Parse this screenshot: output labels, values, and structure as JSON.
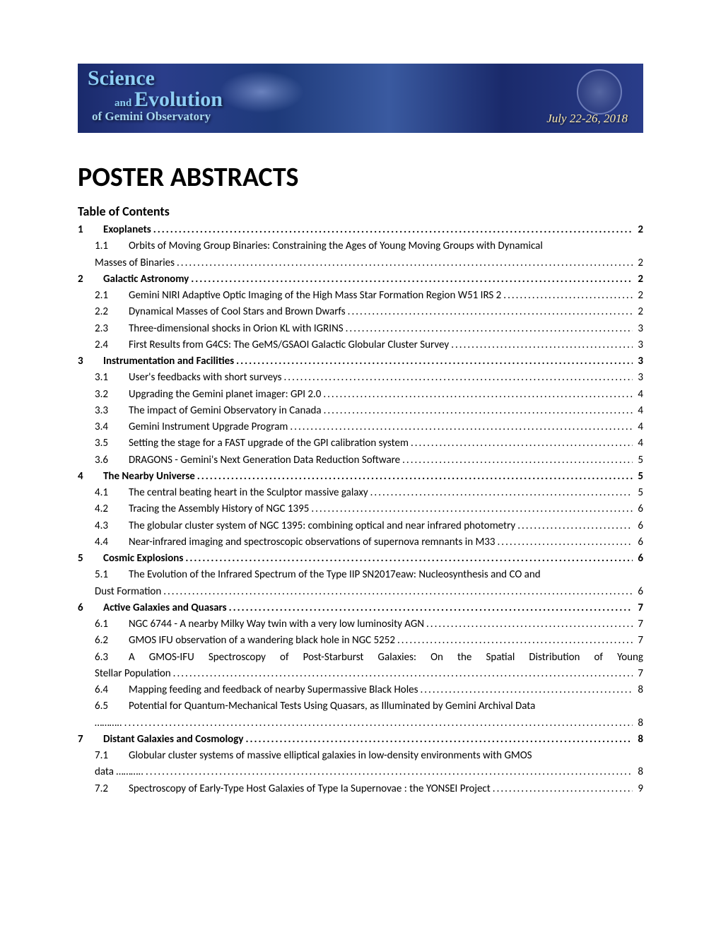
{
  "banner": {
    "line1": "Science",
    "line2a": "and ",
    "line2b": "Evolution",
    "line3": "of Gemini Observatory",
    "date": "July 22-26, 2018",
    "bg_gradient": "#1a2a6b,#2a3d8a,#1e3a7a,#3a5aa0",
    "title_color": "#8ecff5",
    "date_color": "#f8e8b0"
  },
  "title": "POSTER ABSTRACTS",
  "toc_heading": "Table of Contents",
  "font": {
    "body_family": "Calibri",
    "title_size_pt": 28,
    "toc_head_size_pt": 13,
    "toc_body_size_pt": 11
  },
  "colors": {
    "text": "#000000",
    "background": "#ffffff"
  },
  "toc": [
    {
      "type": "section",
      "num": "1",
      "title": "Exoplanets",
      "page": "2"
    },
    {
      "type": "sub",
      "num": "1.1",
      "title": "Orbits of Moving Group Binaries: Constraining the Ages of Young Moving Groups with Dynamical",
      "cont": "Masses of Binaries",
      "page": "2"
    },
    {
      "type": "section",
      "num": "2",
      "title": "Galactic Astronomy",
      "page": "2"
    },
    {
      "type": "sub",
      "num": "2.1",
      "title": "Gemini NIRI Adaptive Optic Imaging of the High Mass Star Formation Region W51 IRS 2",
      "page": "2"
    },
    {
      "type": "sub",
      "num": "2.2",
      "title": "Dynamical Masses of Cool Stars and Brown Dwarfs",
      "page": "2"
    },
    {
      "type": "sub",
      "num": "2.3",
      "title": "Three-dimensional shocks in Orion KL with IGRINS",
      "page": "3"
    },
    {
      "type": "sub",
      "num": "2.4",
      "title": "First Results from G4CS: The GeMS/GSAOI Galactic Globular Cluster Survey",
      "page": "3"
    },
    {
      "type": "section",
      "num": "3",
      "title": "Instrumentation and Facilities",
      "page": "3"
    },
    {
      "type": "sub",
      "num": "3.1",
      "title": "User's feedbacks with short surveys",
      "page": "3"
    },
    {
      "type": "sub",
      "num": "3.2",
      "title": "Upgrading the Gemini planet imager: GPI 2.0",
      "page": "4"
    },
    {
      "type": "sub",
      "num": "3.3",
      "title": "The impact of Gemini Observatory in Canada",
      "page": "4"
    },
    {
      "type": "sub",
      "num": "3.4",
      "title": "Gemini Instrument Upgrade Program",
      "page": "4"
    },
    {
      "type": "sub",
      "num": "3.5",
      "title": "Setting the stage for a FAST upgrade of the GPI calibration system",
      "page": "4"
    },
    {
      "type": "sub",
      "num": "3.6",
      "title": "DRAGONS - Gemini's Next Generation Data Reduction Software",
      "page": "5"
    },
    {
      "type": "section",
      "num": "4",
      "title": "The Nearby Universe",
      "page": "5"
    },
    {
      "type": "sub",
      "num": "4.1",
      "title": "The central beating heart in the Sculptor massive galaxy",
      "page": "5"
    },
    {
      "type": "sub",
      "num": "4.2",
      "title": "Tracing the Assembly History of NGC 1395",
      "page": "6"
    },
    {
      "type": "sub",
      "num": "4.3",
      "title": "The globular cluster system of NGC 1395: combining optical and near infrared photometry",
      "page": "6"
    },
    {
      "type": "sub",
      "num": "4.4",
      "title": "Near-infrared imaging and spectroscopic observations of supernova remnants in M33",
      "page": "6"
    },
    {
      "type": "section",
      "num": "5",
      "title": "Cosmic Explosions",
      "page": "6"
    },
    {
      "type": "sub",
      "num": "5.1",
      "title": "The Evolution of the Infrared Spectrum of the Type IIP SN2017eaw: Nucleosynthesis and CO and",
      "cont": "Dust Formation",
      "page": "6"
    },
    {
      "type": "section",
      "num": "6",
      "title": "Active Galaxies and Quasars",
      "page": "7"
    },
    {
      "type": "sub",
      "num": "6.1",
      "title": "NGC 6744 - A nearby Milky Way twin with a very low luminosity AGN",
      "page": "7"
    },
    {
      "type": "sub",
      "num": "6.2",
      "title": "GMOS IFU observation of a wandering black hole in NGC 5252",
      "page": "7"
    },
    {
      "type": "sub",
      "num": "6.3",
      "title": "A GMOS-IFU Spectroscopy of Post-Starburst Galaxies: On the Spatial Distribution of Young",
      "cont": "Stellar Population",
      "page": "7",
      "justify": true
    },
    {
      "type": "sub",
      "num": "6.4",
      "title": "Mapping feeding and feedback of nearby Supermassive Black Holes",
      "page": "8"
    },
    {
      "type": "sub",
      "num": "6.5",
      "title": "Potential for Quantum-Mechanical Tests Using Quasars, as Illuminated by Gemini Archival Data",
      "cont": "………..",
      "page": "8",
      "contdots": true
    },
    {
      "type": "section",
      "num": "7",
      "title": "Distant Galaxies and Cosmology",
      "page": "8"
    },
    {
      "type": "sub",
      "num": "7.1",
      "title": "Globular cluster systems of massive elliptical galaxies in low-density environments with GMOS",
      "cont": "data ………..",
      "page": "8",
      "contdots": true
    },
    {
      "type": "sub",
      "num": "7.2",
      "title": "Spectroscopy of Early-Type Host Galaxies of Type Ia Supernovae : the YONSEI Project",
      "page": "9"
    }
  ]
}
